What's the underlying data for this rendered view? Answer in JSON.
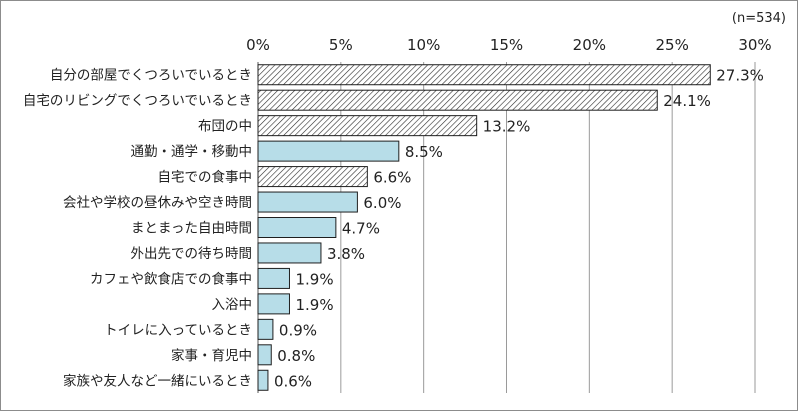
{
  "chart_data": {
    "type": "bar",
    "orientation": "horizontal",
    "annotation": "(n=534)",
    "xlim": [
      0,
      30
    ],
    "x_ticks": [
      0,
      5,
      10,
      15,
      20,
      25,
      30
    ],
    "x_tick_labels": [
      "0%",
      "5%",
      "10%",
      "15%",
      "20%",
      "25%",
      "30%"
    ],
    "grid": true,
    "legend": "none",
    "categories": [
      "自分の部屋でくつろいでいるとき",
      "自宅のリビングでくつろいでいるとき",
      "布団の中",
      "通勤・通学・移動中",
      "自宅での食事中",
      "会社や学校の昼休みや空き時間",
      "まとまった自由時間",
      "外出先での待ち時間",
      "カフェや飲食店での食事中",
      "入浴中",
      "トイレに入っているとき",
      "家事・育児中",
      "家族や友人など一緒にいるとき"
    ],
    "values": [
      27.3,
      24.1,
      13.2,
      8.5,
      6.6,
      6.0,
      4.7,
      3.8,
      1.9,
      1.9,
      0.9,
      0.8,
      0.6
    ],
    "value_labels": [
      "27.3%",
      "24.1%",
      "13.2%",
      "8.5%",
      "6.6%",
      "6.0%",
      "4.7%",
      "3.8%",
      "1.9%",
      "1.9%",
      "0.9%",
      "0.8%",
      "0.6%"
    ],
    "bar_fill": [
      "hatched",
      "hatched",
      "hatched",
      "solid",
      "hatched",
      "solid",
      "solid",
      "solid",
      "solid",
      "solid",
      "solid",
      "solid",
      "solid"
    ],
    "colors": {
      "solid_fill": "#b7dde8",
      "hatch_line": "#2b2b2b",
      "bar_stroke": "#1f1f1f",
      "grid": "#9a9a9a"
    }
  }
}
